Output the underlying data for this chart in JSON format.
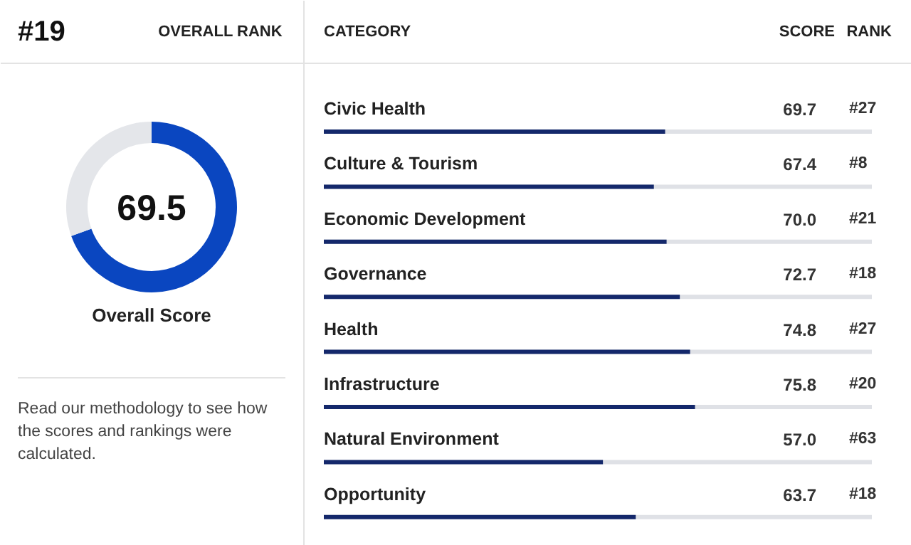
{
  "chart_data": [
    {
      "type": "donut",
      "title": "#19",
      "subtitle": "OVERALL RANK",
      "xlabel": "Overall Score",
      "categories": [
        null,
        null
      ],
      "values": [
        69.5,
        30.5
      ],
      "colors": [
        "#0a46c0",
        "#e4e6ea"
      ],
      "value_labels": [
        "69.5",
        null
      ],
      "annotations": [
        "Read our methodology to see how the scores and rankings were calculated."
      ]
    },
    {
      "type": "bar",
      "orientation": "horizontal",
      "value_labels": [
        "69.7",
        "67.4",
        "70.0",
        "72.7",
        "74.8",
        "75.8",
        "57.0",
        "63.7"
      ],
      "categories": [
        "Civic Health",
        "Culture & Tourism",
        "Economic Development",
        "Governance",
        "Health",
        "Infrastructure",
        "Natural Environment",
        "Opportunity"
      ],
      "values": [
        69.7,
        67.4,
        70.0,
        72.7,
        74.8,
        75.8,
        57.0,
        63.7
      ],
      "color": "#14286b",
      "annotations": [
        "CATEGORY",
        "SCORE",
        "RANK",
        "#27",
        "#8",
        "#21",
        "#18",
        "#27",
        "#20",
        "#63",
        "#18"
      ]
    }
  ]
}
